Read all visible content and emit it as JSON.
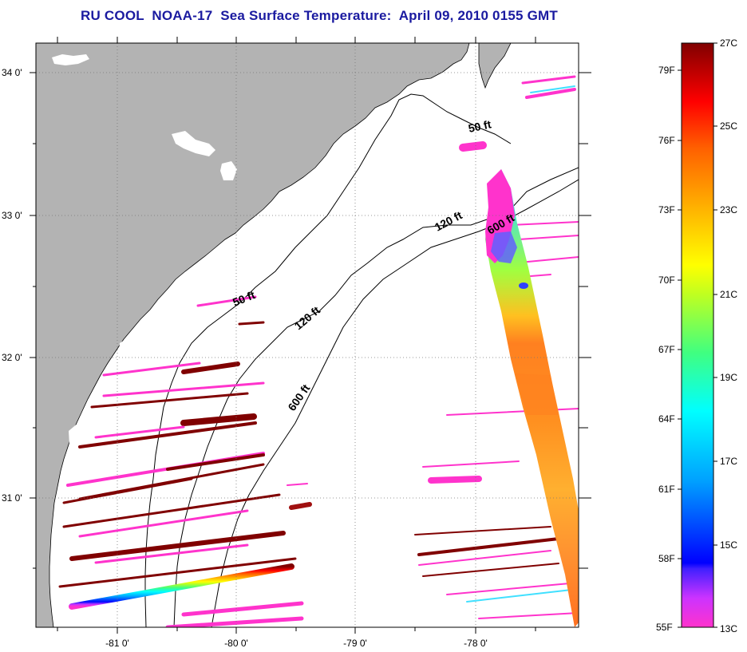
{
  "title": "RU COOL  NOAA-17  Sea Surface Temperature:  April 09, 2010 0155 GMT",
  "latitude_labels": [
    "34 0'",
    "33 0'",
    "32 0'",
    "31 0'"
  ],
  "longitude_labels": [
    "-81 0'",
    "-80 0'",
    "-79 0'",
    "-78 0'"
  ],
  "contour_labels": {
    "north_50": "50 ft",
    "mid_50": "50 ft",
    "north_120": "120 ft",
    "mid_120": "120 ft",
    "north_600": "600 ft",
    "south_600": "600 ft"
  },
  "colorbar": {
    "fahrenheit": [
      "79F",
      "76F",
      "73F",
      "70F",
      "67F",
      "64F",
      "61F",
      "58F",
      "55F"
    ],
    "celsius": [
      "27C",
      "25C",
      "23C",
      "21C",
      "19C",
      "17C",
      "15C",
      "13C"
    ]
  },
  "colors": {
    "title": "#1a1aa0",
    "land": "#b3b3b3",
    "ocean_no_data": "#ffffff",
    "gridline": "#777777"
  }
}
